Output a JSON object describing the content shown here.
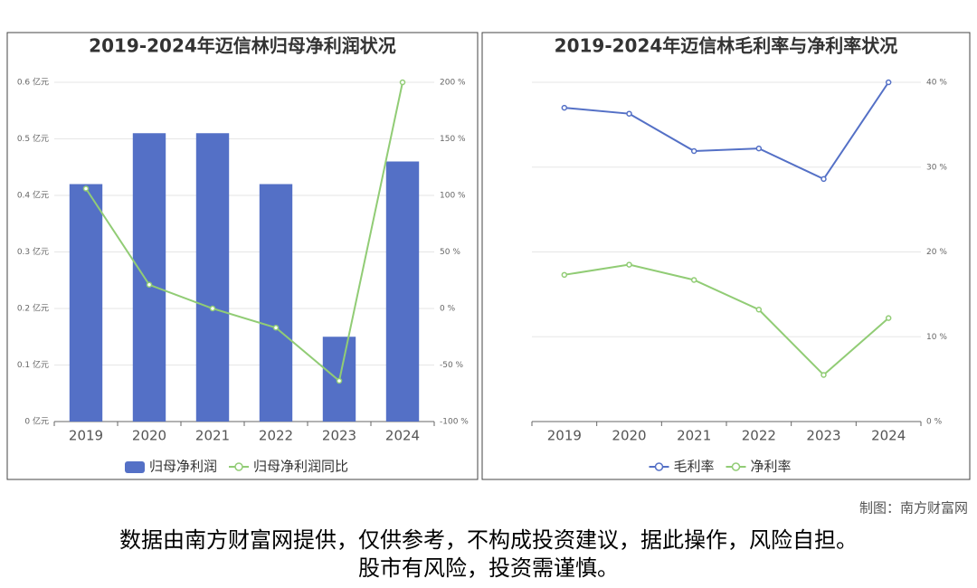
{
  "chart_data": [
    {
      "type": "bar",
      "title": "2019-2024年迈信林归母净利润状况",
      "categories": [
        "2019",
        "2020",
        "2021",
        "2022",
        "2023",
        "2024"
      ],
      "series": [
        {
          "name": "归母净利润",
          "type": "bar",
          "color": "#5470c6",
          "values": [
            0.42,
            0.51,
            0.51,
            0.42,
            0.15,
            0.46
          ]
        },
        {
          "name": "归母净利润同比",
          "type": "line",
          "axis": "y2",
          "color": "#91cc75",
          "values": [
            106,
            21,
            0,
            -17,
            -64,
            200
          ]
        }
      ],
      "ylim": [
        0,
        0.6
      ],
      "yticks": [
        {
          "value": 0,
          "label": "0 亿元"
        },
        {
          "value": 0.1,
          "label": "0.1 亿元"
        },
        {
          "value": 0.2,
          "label": "0.2 亿元"
        },
        {
          "value": 0.3,
          "label": "0.3 亿元"
        },
        {
          "value": 0.4,
          "label": "0.4 亿元"
        },
        {
          "value": 0.5,
          "label": "0.5 亿元"
        },
        {
          "value": 0.6,
          "label": "0.6 亿元"
        }
      ],
      "y2lim": [
        -100,
        200
      ],
      "y2ticks": [
        {
          "value": -100,
          "label": "-100 %"
        },
        {
          "value": -50,
          "label": "-50 %"
        },
        {
          "value": 0,
          "label": "0 %"
        },
        {
          "value": 50,
          "label": "50 %"
        },
        {
          "value": 100,
          "label": "100 %"
        },
        {
          "value": 150,
          "label": "150 %"
        },
        {
          "value": 200,
          "label": "200 %"
        }
      ],
      "grid": true,
      "legend": "bottom"
    },
    {
      "type": "line",
      "title": "2019-2024年迈信林毛利率与净利率状况",
      "categories": [
        "2019",
        "2020",
        "2021",
        "2022",
        "2023",
        "2024"
      ],
      "series": [
        {
          "name": "毛利率",
          "type": "line",
          "axis": "y2",
          "color": "#5470c6",
          "values": [
            37.0,
            36.3,
            31.9,
            32.2,
            28.6,
            40.0
          ]
        },
        {
          "name": "净利率",
          "type": "line",
          "axis": "y2",
          "color": "#91cc75",
          "values": [
            17.3,
            18.5,
            16.7,
            13.2,
            5.5,
            12.2
          ]
        }
      ],
      "y2lim": [
        0,
        40
      ],
      "y2ticks": [
        {
          "value": 0,
          "label": "0 %"
        },
        {
          "value": 10,
          "label": "10 %"
        },
        {
          "value": 20,
          "label": "20 %"
        },
        {
          "value": 30,
          "label": "30 %"
        },
        {
          "value": 40,
          "label": "40 %"
        }
      ],
      "grid": true,
      "legend": "bottom"
    }
  ],
  "credit": "制图：南方财富网",
  "disclaimer": [
    "数据由南方财富网提供，仅供参考，不构成投资建议，据此操作，风险自担。",
    "股市有风险，投资需谨慎。"
  ]
}
